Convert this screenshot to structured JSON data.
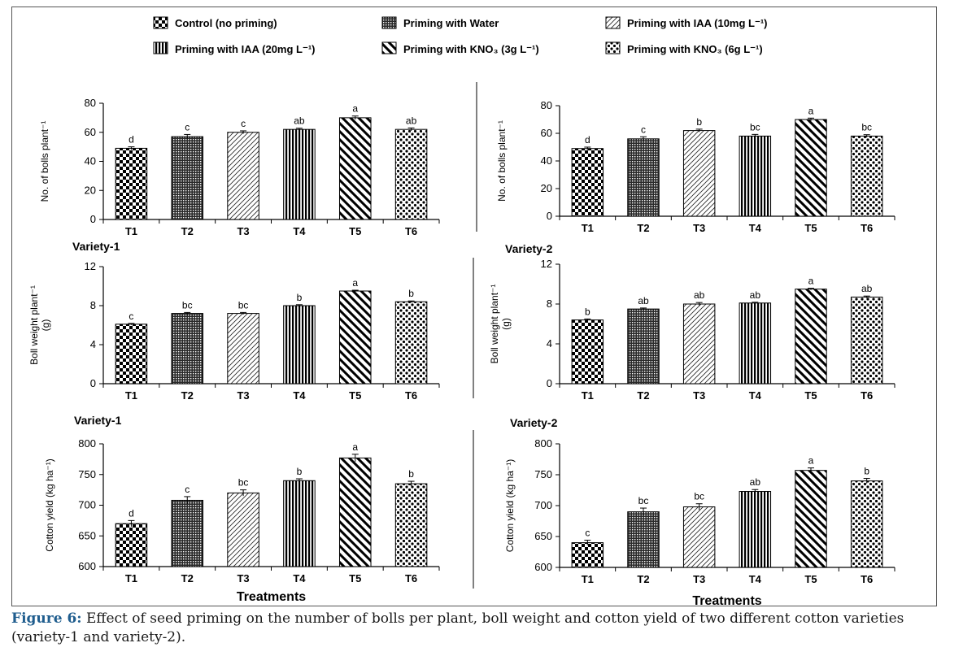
{
  "legend": [
    {
      "label": "Control  (no priming)",
      "pattern": "checker"
    },
    {
      "label": "Priming with Water",
      "pattern": "dense"
    },
    {
      "label": "Priming with IAA (10mg L⁻¹)",
      "pattern": "fwdhatch"
    },
    {
      "label": "Priming with IAA (20mg L⁻¹)",
      "pattern": "vertical"
    },
    {
      "label": "Priming with KNO₃ (3g L⁻¹)",
      "pattern": "backhatch"
    },
    {
      "label": "Priming with KNO₃ (6g L⁻¹)",
      "pattern": "dots"
    }
  ],
  "xlabel": "Treatments",
  "caption": {
    "label": "Figure 6:",
    "text": " Effect of seed priming on the number of bolls per plant, boll weight and cotton yield of two different cotton varieties (variety-1 and variety-2)."
  },
  "chart_data": [
    {
      "type": "bar",
      "title": "",
      "ylabel_lines": [
        "No. of bolls plant⁻¹"
      ],
      "xlabel": "",
      "categories": [
        "T1",
        "T2",
        "T3",
        "T4",
        "T5",
        "T6"
      ],
      "values": [
        49,
        57,
        60,
        62,
        70,
        62
      ],
      "errors": [
        1,
        1.5,
        1,
        0.8,
        1.2,
        1
      ],
      "letters": [
        "d",
        "c",
        "c",
        "ab",
        "a",
        "ab"
      ],
      "ylim": [
        0,
        80
      ],
      "yticks": [
        "0",
        "20",
        "40",
        "60",
        "80"
      ]
    },
    {
      "type": "bar",
      "title": "",
      "ylabel_lines": [
        "No. of bolls plant⁻¹"
      ],
      "xlabel": "",
      "categories": [
        "T1",
        "T2",
        "T3",
        "T4",
        "T5",
        "T6"
      ],
      "values": [
        49,
        56,
        62,
        58,
        70,
        58
      ],
      "errors": [
        1,
        1.5,
        1,
        1.2,
        1,
        1
      ],
      "letters": [
        "d",
        "c",
        "b",
        "bc",
        "a",
        "bc"
      ],
      "ylim": [
        0,
        80
      ],
      "yticks": [
        "0",
        "20",
        "40",
        "60",
        "80"
      ]
    },
    {
      "type": "bar",
      "title": "Variety-1",
      "ylabel_lines": [
        "Boll weight plant⁻¹",
        "(g)"
      ],
      "xlabel": "",
      "categories": [
        "T1",
        "T2",
        "T3",
        "T4",
        "T5",
        "T6"
      ],
      "values": [
        6.1,
        7.2,
        7.2,
        8.0,
        9.5,
        8.4
      ],
      "errors": [
        0.08,
        0.1,
        0.1,
        0.1,
        0.08,
        0.08
      ],
      "letters": [
        "c",
        "bc",
        "bc",
        "b",
        "a",
        "b"
      ],
      "ylim": [
        0,
        12
      ],
      "yticks": [
        "0",
        "4",
        "8",
        "12"
      ]
    },
    {
      "type": "bar",
      "title": "Variety-2",
      "ylabel_lines": [
        "Boll weight plant⁻¹",
        "(g)"
      ],
      "xlabel": "",
      "categories": [
        "T1",
        "T2",
        "T3",
        "T4",
        "T5",
        "T6"
      ],
      "values": [
        6.4,
        7.5,
        8.0,
        8.1,
        9.5,
        8.7
      ],
      "errors": [
        0.1,
        0.1,
        0.15,
        0.08,
        0.08,
        0.1
      ],
      "letters": [
        "b",
        "ab",
        "ab",
        "ab",
        "a",
        "ab"
      ],
      "ylim": [
        0,
        12
      ],
      "yticks": [
        "0",
        "4",
        "8",
        "12"
      ]
    },
    {
      "type": "bar",
      "title": "Variety-1",
      "ylabel_lines": [
        "Cotton yield (kg ha⁻¹)"
      ],
      "xlabel": "Treatments",
      "categories": [
        "T1",
        "T2",
        "T3",
        "T4",
        "T5",
        "T6"
      ],
      "values": [
        670,
        708,
        720,
        740,
        777,
        735
      ],
      "errors": [
        5,
        6,
        5,
        3,
        6,
        4
      ],
      "letters": [
        "d",
        "c",
        "bc",
        "b",
        "a",
        "b"
      ],
      "ylim": [
        600,
        800
      ],
      "yticks": [
        "600",
        "650",
        "700",
        "750",
        "800"
      ]
    },
    {
      "type": "bar",
      "title": "Variety-2",
      "ylabel_lines": [
        "Cotton yield (kg ha⁻¹)"
      ],
      "xlabel": "Treatments",
      "categories": [
        "T1",
        "T2",
        "T3",
        "T4",
        "T5",
        "T6"
      ],
      "values": [
        640,
        690,
        698,
        723,
        757,
        740
      ],
      "errors": [
        4,
        6,
        5,
        3,
        4,
        4
      ],
      "letters": [
        "c",
        "bc",
        "bc",
        "ab",
        "a",
        "b"
      ],
      "ylim": [
        600,
        800
      ],
      "yticks": [
        "600",
        "650",
        "700",
        "750",
        "800"
      ]
    }
  ]
}
